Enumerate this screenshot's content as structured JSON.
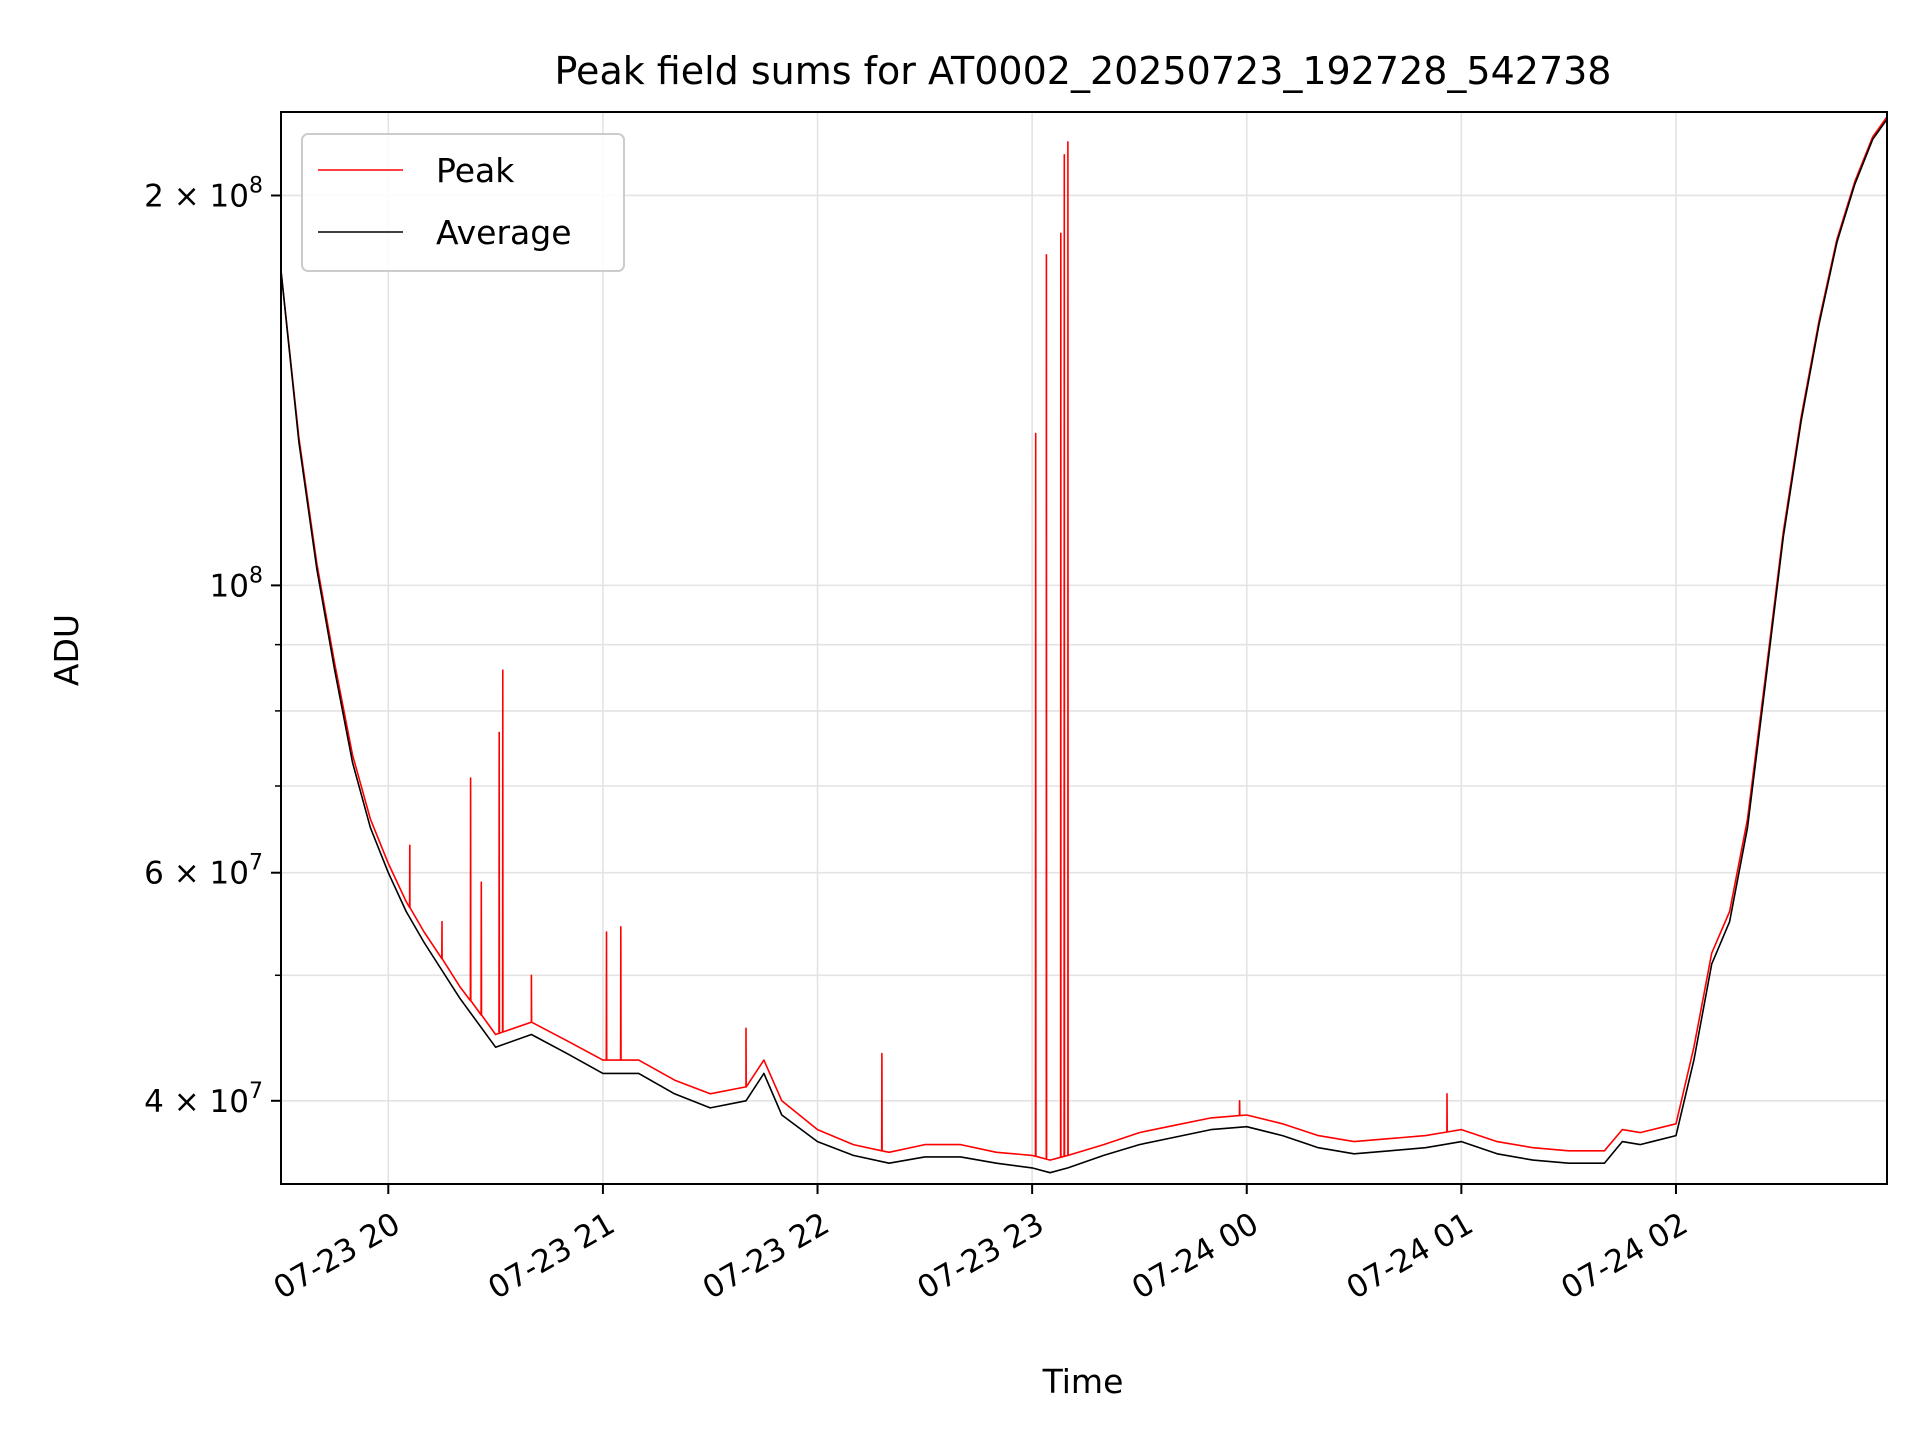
{
  "chart_data": {
    "type": "line",
    "title": "Peak field sums for AT0002_20250723_192728_542738",
    "xlabel": "Time",
    "ylabel": "ADU",
    "y_scale": "log",
    "ylim": [
      34500000,
      232000000
    ],
    "xlim": [
      "2025-07-23 19:30",
      "2025-07-24 02:59"
    ],
    "grid": true,
    "legend_position": "top-left",
    "x_ticks": [
      {
        "value": "2025-07-23 20:00",
        "label": "07-23 20"
      },
      {
        "value": "2025-07-23 21:00",
        "label": "07-23 21"
      },
      {
        "value": "2025-07-23 22:00",
        "label": "07-23 22"
      },
      {
        "value": "2025-07-23 23:00",
        "label": "07-23 23"
      },
      {
        "value": "2025-07-24 00:00",
        "label": "07-24 00"
      },
      {
        "value": "2025-07-24 01:00",
        "label": "07-24 01"
      },
      {
        "value": "2025-07-24 02:00",
        "label": "07-24 02"
      }
    ],
    "y_ticks": [
      {
        "value": 40000000,
        "label": "4 × 10",
        "exp": "7"
      },
      {
        "value": 60000000,
        "label": "6 × 10",
        "exp": "7"
      },
      {
        "value": 100000000,
        "label": "10",
        "exp": "8"
      },
      {
        "value": 200000000,
        "label": "2 × 10",
        "exp": "8"
      }
    ],
    "y_minor_ticks": [
      50000000,
      70000000,
      80000000,
      90000000
    ],
    "series": [
      {
        "name": "Peak",
        "color": "#ff0000",
        "x": [
          "2025-07-23 19:30",
          "2025-07-23 19:35",
          "2025-07-23 19:40",
          "2025-07-23 19:45",
          "2025-07-23 19:50",
          "2025-07-23 19:55",
          "2025-07-23 20:00",
          "2025-07-23 20:05",
          "2025-07-23 20:10",
          "2025-07-23 20:20",
          "2025-07-23 20:30",
          "2025-07-23 20:40",
          "2025-07-23 20:50",
          "2025-07-23 21:00",
          "2025-07-23 21:10",
          "2025-07-23 21:20",
          "2025-07-23 21:30",
          "2025-07-23 21:40",
          "2025-07-23 21:45",
          "2025-07-23 21:50",
          "2025-07-23 22:00",
          "2025-07-23 22:10",
          "2025-07-23 22:20",
          "2025-07-23 22:30",
          "2025-07-23 22:40",
          "2025-07-23 22:50",
          "2025-07-23 23:00",
          "2025-07-23 23:05",
          "2025-07-23 23:10",
          "2025-07-23 23:20",
          "2025-07-23 23:30",
          "2025-07-23 23:40",
          "2025-07-23 23:50",
          "2025-07-24 00:00",
          "2025-07-24 00:10",
          "2025-07-24 00:20",
          "2025-07-24 00:30",
          "2025-07-24 00:40",
          "2025-07-24 00:50",
          "2025-07-24 01:00",
          "2025-07-24 01:10",
          "2025-07-24 01:20",
          "2025-07-24 01:30",
          "2025-07-24 01:40",
          "2025-07-24 01:45",
          "2025-07-24 01:50",
          "2025-07-24 02:00",
          "2025-07-24 02:05",
          "2025-07-24 02:10",
          "2025-07-24 02:15",
          "2025-07-24 02:20",
          "2025-07-24 02:25",
          "2025-07-24 02:30",
          "2025-07-24 02:35",
          "2025-07-24 02:40",
          "2025-07-24 02:45",
          "2025-07-24 02:50",
          "2025-07-24 02:55",
          "2025-07-24 02:59"
        ],
        "y": [
          175000000,
          130000000,
          104000000,
          87000000,
          74000000,
          66000000,
          61000000,
          57000000,
          54000000,
          49000000,
          45000000,
          46000000,
          44500000,
          43000000,
          43000000,
          41500000,
          40500000,
          41000000,
          43000000,
          40000000,
          38000000,
          37000000,
          36500000,
          37000000,
          37000000,
          36500000,
          36300000,
          36000000,
          36300000,
          37000000,
          37800000,
          38300000,
          38800000,
          39000000,
          38400000,
          37600000,
          37200000,
          37400000,
          37600000,
          38000000,
          37200000,
          36800000,
          36600000,
          36600000,
          38000000,
          37800000,
          38400000,
          44000000,
          52000000,
          56000000,
          66000000,
          85000000,
          110000000,
          135000000,
          160000000,
          185000000,
          205000000,
          222000000,
          230000000
        ],
        "spikes": [
          {
            "x": "2025-07-23 20:06",
            "y": 63000000
          },
          {
            "x": "2025-07-23 20:15",
            "y": 55000000
          },
          {
            "x": "2025-07-23 20:23",
            "y": 71000000
          },
          {
            "x": "2025-07-23 20:26",
            "y": 59000000
          },
          {
            "x": "2025-07-23 20:31",
            "y": 77000000
          },
          {
            "x": "2025-07-23 20:32",
            "y": 86000000
          },
          {
            "x": "2025-07-23 20:40",
            "y": 50000000
          },
          {
            "x": "2025-07-23 21:01",
            "y": 54000000
          },
          {
            "x": "2025-07-23 21:05",
            "y": 54500000
          },
          {
            "x": "2025-07-23 21:40",
            "y": 45500000
          },
          {
            "x": "2025-07-23 22:18",
            "y": 43500000
          },
          {
            "x": "2025-07-23 23:01",
            "y": 131000000
          },
          {
            "x": "2025-07-23 23:04",
            "y": 180000000
          },
          {
            "x": "2025-07-23 23:08",
            "y": 187000000
          },
          {
            "x": "2025-07-23 23:09",
            "y": 215000000
          },
          {
            "x": "2025-07-23 23:10",
            "y": 220000000
          },
          {
            "x": "2025-07-23 23:58",
            "y": 40000000
          },
          {
            "x": "2025-07-24 00:56",
            "y": 40500000
          }
        ]
      },
      {
        "name": "Average",
        "color": "#000000",
        "x": [
          "2025-07-23 19:30",
          "2025-07-23 19:35",
          "2025-07-23 19:40",
          "2025-07-23 19:45",
          "2025-07-23 19:50",
          "2025-07-23 19:55",
          "2025-07-23 20:00",
          "2025-07-23 20:05",
          "2025-07-23 20:10",
          "2025-07-23 20:20",
          "2025-07-23 20:30",
          "2025-07-23 20:40",
          "2025-07-23 20:50",
          "2025-07-23 21:00",
          "2025-07-23 21:10",
          "2025-07-23 21:20",
          "2025-07-23 21:30",
          "2025-07-23 21:40",
          "2025-07-23 21:45",
          "2025-07-23 21:50",
          "2025-07-23 22:00",
          "2025-07-23 22:10",
          "2025-07-23 22:20",
          "2025-07-23 22:30",
          "2025-07-23 22:40",
          "2025-07-23 22:50",
          "2025-07-23 23:00",
          "2025-07-23 23:05",
          "2025-07-23 23:10",
          "2025-07-23 23:20",
          "2025-07-23 23:30",
          "2025-07-23 23:40",
          "2025-07-23 23:50",
          "2025-07-24 00:00",
          "2025-07-24 00:10",
          "2025-07-24 00:20",
          "2025-07-24 00:30",
          "2025-07-24 00:40",
          "2025-07-24 00:50",
          "2025-07-24 01:00",
          "2025-07-24 01:10",
          "2025-07-24 01:20",
          "2025-07-24 01:30",
          "2025-07-24 01:40",
          "2025-07-24 01:45",
          "2025-07-24 01:50",
          "2025-07-24 02:00",
          "2025-07-24 02:05",
          "2025-07-24 02:10",
          "2025-07-24 02:15",
          "2025-07-24 02:20",
          "2025-07-24 02:25",
          "2025-07-24 02:30",
          "2025-07-24 02:35",
          "2025-07-24 02:40",
          "2025-07-24 02:45",
          "2025-07-24 02:50",
          "2025-07-24 02:55",
          "2025-07-24 02:59"
        ],
        "y": [
          175000000,
          129000000,
          103000000,
          86000000,
          73000000,
          65000000,
          60000000,
          56000000,
          53000000,
          48000000,
          44000000,
          45000000,
          43500000,
          42000000,
          42000000,
          40500000,
          39500000,
          40000000,
          42000000,
          39000000,
          37200000,
          36300000,
          35800000,
          36200000,
          36200000,
          35800000,
          35500000,
          35200000,
          35500000,
          36300000,
          37000000,
          37500000,
          38000000,
          38200000,
          37600000,
          36800000,
          36400000,
          36600000,
          36800000,
          37200000,
          36400000,
          36000000,
          35800000,
          35800000,
          37200000,
          37000000,
          37600000,
          43000000,
          51000000,
          55000000,
          65000000,
          84000000,
          109000000,
          134000000,
          159000000,
          184000000,
          204000000,
          221000000,
          229000000
        ]
      }
    ]
  }
}
